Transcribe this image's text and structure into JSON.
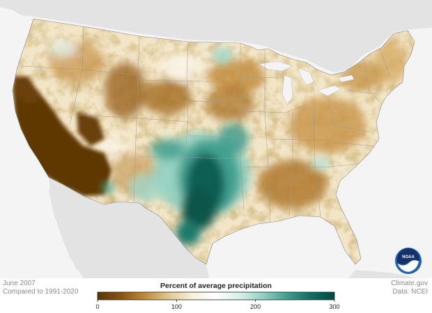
{
  "meta": {
    "date": "June 2007",
    "comparison": "Compared to 1991-2020",
    "credit": "Climate.gov",
    "data_source": "Data: NCEI"
  },
  "legend": {
    "title": "Percent of average precipitation",
    "ticks": [
      "0",
      "100",
      "200",
      "300"
    ],
    "tick_values": [
      0,
      100,
      200,
      300
    ],
    "range": [
      0,
      300
    ],
    "gradient": [
      "#5a3504",
      "#8a5410",
      "#c08a3a",
      "#e2c88e",
      "#f6f0dc",
      "#ffffff",
      "#d6efe9",
      "#8fd0c2",
      "#3e9e8e",
      "#0d6e62",
      "#024a40"
    ]
  },
  "logo": {
    "text": "NOAA",
    "colors": {
      "outer": "#1f62b2",
      "top": "#16306a",
      "wave": "#ffffff"
    }
  },
  "map": {
    "land_color": "#ffffff",
    "background_color": "#e6e6e6",
    "ocean_color": "#f4f4f4",
    "palette": {
      "very_dry": "#5a3504",
      "dry": "#a36b23",
      "slightly_dry": "#e3c48a",
      "normal": "#f8f4e8",
      "wet": "#9fd6c9",
      "very_wet": "#02463d"
    }
  }
}
